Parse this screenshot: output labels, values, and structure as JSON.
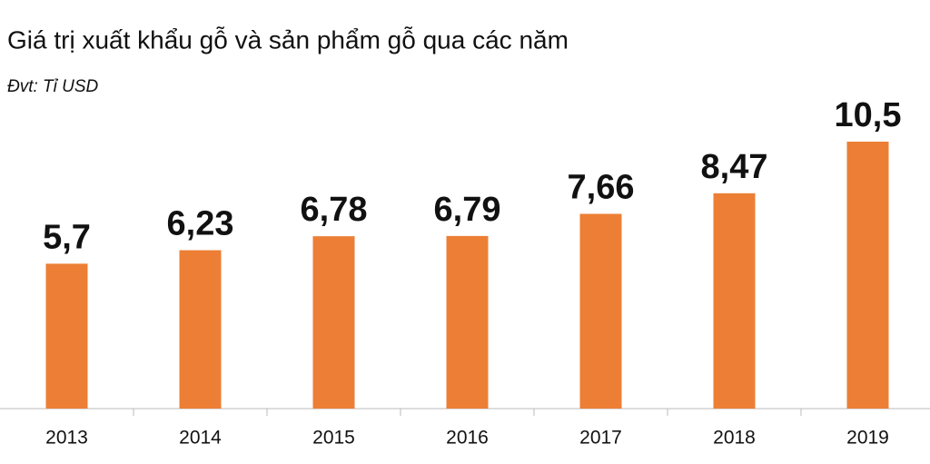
{
  "chart_data": {
    "type": "bar",
    "title": "Giá trị xuất khẩu gỗ và sản phẩm gỗ qua các năm",
    "subtitle": "Đvt: Tỉ USD",
    "categories": [
      "2013",
      "2014",
      "2015",
      "2016",
      "2017",
      "2018",
      "2019"
    ],
    "values": [
      5.7,
      6.23,
      6.78,
      6.79,
      7.66,
      8.47,
      10.5
    ],
    "value_labels": [
      "5,7",
      "6,23",
      "6,78",
      "6,79",
      "7,66",
      "8,47",
      "10,5"
    ],
    "color": "#ec7f35"
  }
}
